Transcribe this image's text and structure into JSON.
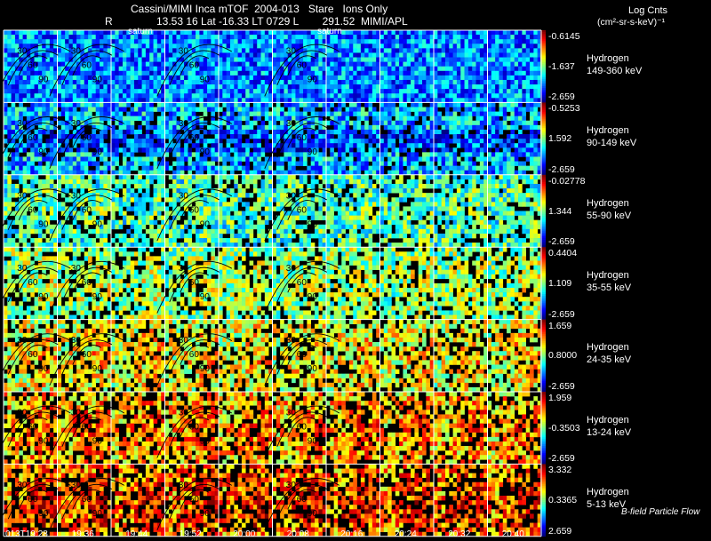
{
  "header": {
    "title": "Cassini/MIMI Inca mTOF  2004-013   Stare   Ions Only",
    "line2_r": "R",
    "line2_rest": "13.53 16 Lat -16.33 LT 0729 L        291.52  MIMI/APL",
    "legend_title": "Log Cnts",
    "legend_units": "(cm²-sr-s-keV)⁻¹",
    "saturn_label_1": "saturn",
    "saturn_label_2": "saturn"
  },
  "footer": {
    "note": "B-field Particle Flow"
  },
  "chart_data": {
    "type": "heatmap",
    "title": "Cassini/MIMI Inca mTOF  2004-013   Stare   Ions Only",
    "time_labels": [
      "013T19:28",
      "19:36",
      "19:44",
      "19:52",
      "20:00",
      "20:08",
      "20:16",
      "20:24",
      "20:32",
      "20:40"
    ],
    "columns": 10,
    "contour_labels": [
      "30",
      "60",
      "90",
      "120",
      "150"
    ],
    "colorbar": "log counts (cm²-sr-s-keV)⁻¹",
    "rows": [
      {
        "species": "Hydrogen",
        "energy": "149-360 keV",
        "cb_top": "-0.6145",
        "cb_mid": "-1.637",
        "cb_bot": "-2.659",
        "level": 0.25
      },
      {
        "species": "Hydrogen",
        "energy": "90-149 keV",
        "cb_top": "-0.5253",
        "cb_mid": "1.592",
        "cb_bot": "-2.659",
        "level": 0.3
      },
      {
        "species": "Hydrogen",
        "energy": "55-90 keV",
        "cb_top": "-0.02778",
        "cb_mid": "1.344",
        "cb_bot": "-2.659",
        "level": 0.42
      },
      {
        "species": "Hydrogen",
        "energy": "35-55 keV",
        "cb_top": "0.4404",
        "cb_mid": "1.109",
        "cb_bot": "-2.659",
        "level": 0.5
      },
      {
        "species": "Hydrogen",
        "energy": "24-35 keV",
        "cb_top": "1.659",
        "cb_mid": "0.8000",
        "cb_bot": "-2.659",
        "level": 0.58
      },
      {
        "species": "Hydrogen",
        "energy": "13-24 keV",
        "cb_top": "1.959",
        "cb_mid": "-0.3503",
        "cb_bot": "-2.659",
        "level": 0.66
      },
      {
        "species": "Hydrogen",
        "energy": "5-13 keV",
        "cb_top": "3.332",
        "cb_mid": "0.3365",
        "cb_bot": "2.659",
        "level": 0.72
      }
    ]
  }
}
